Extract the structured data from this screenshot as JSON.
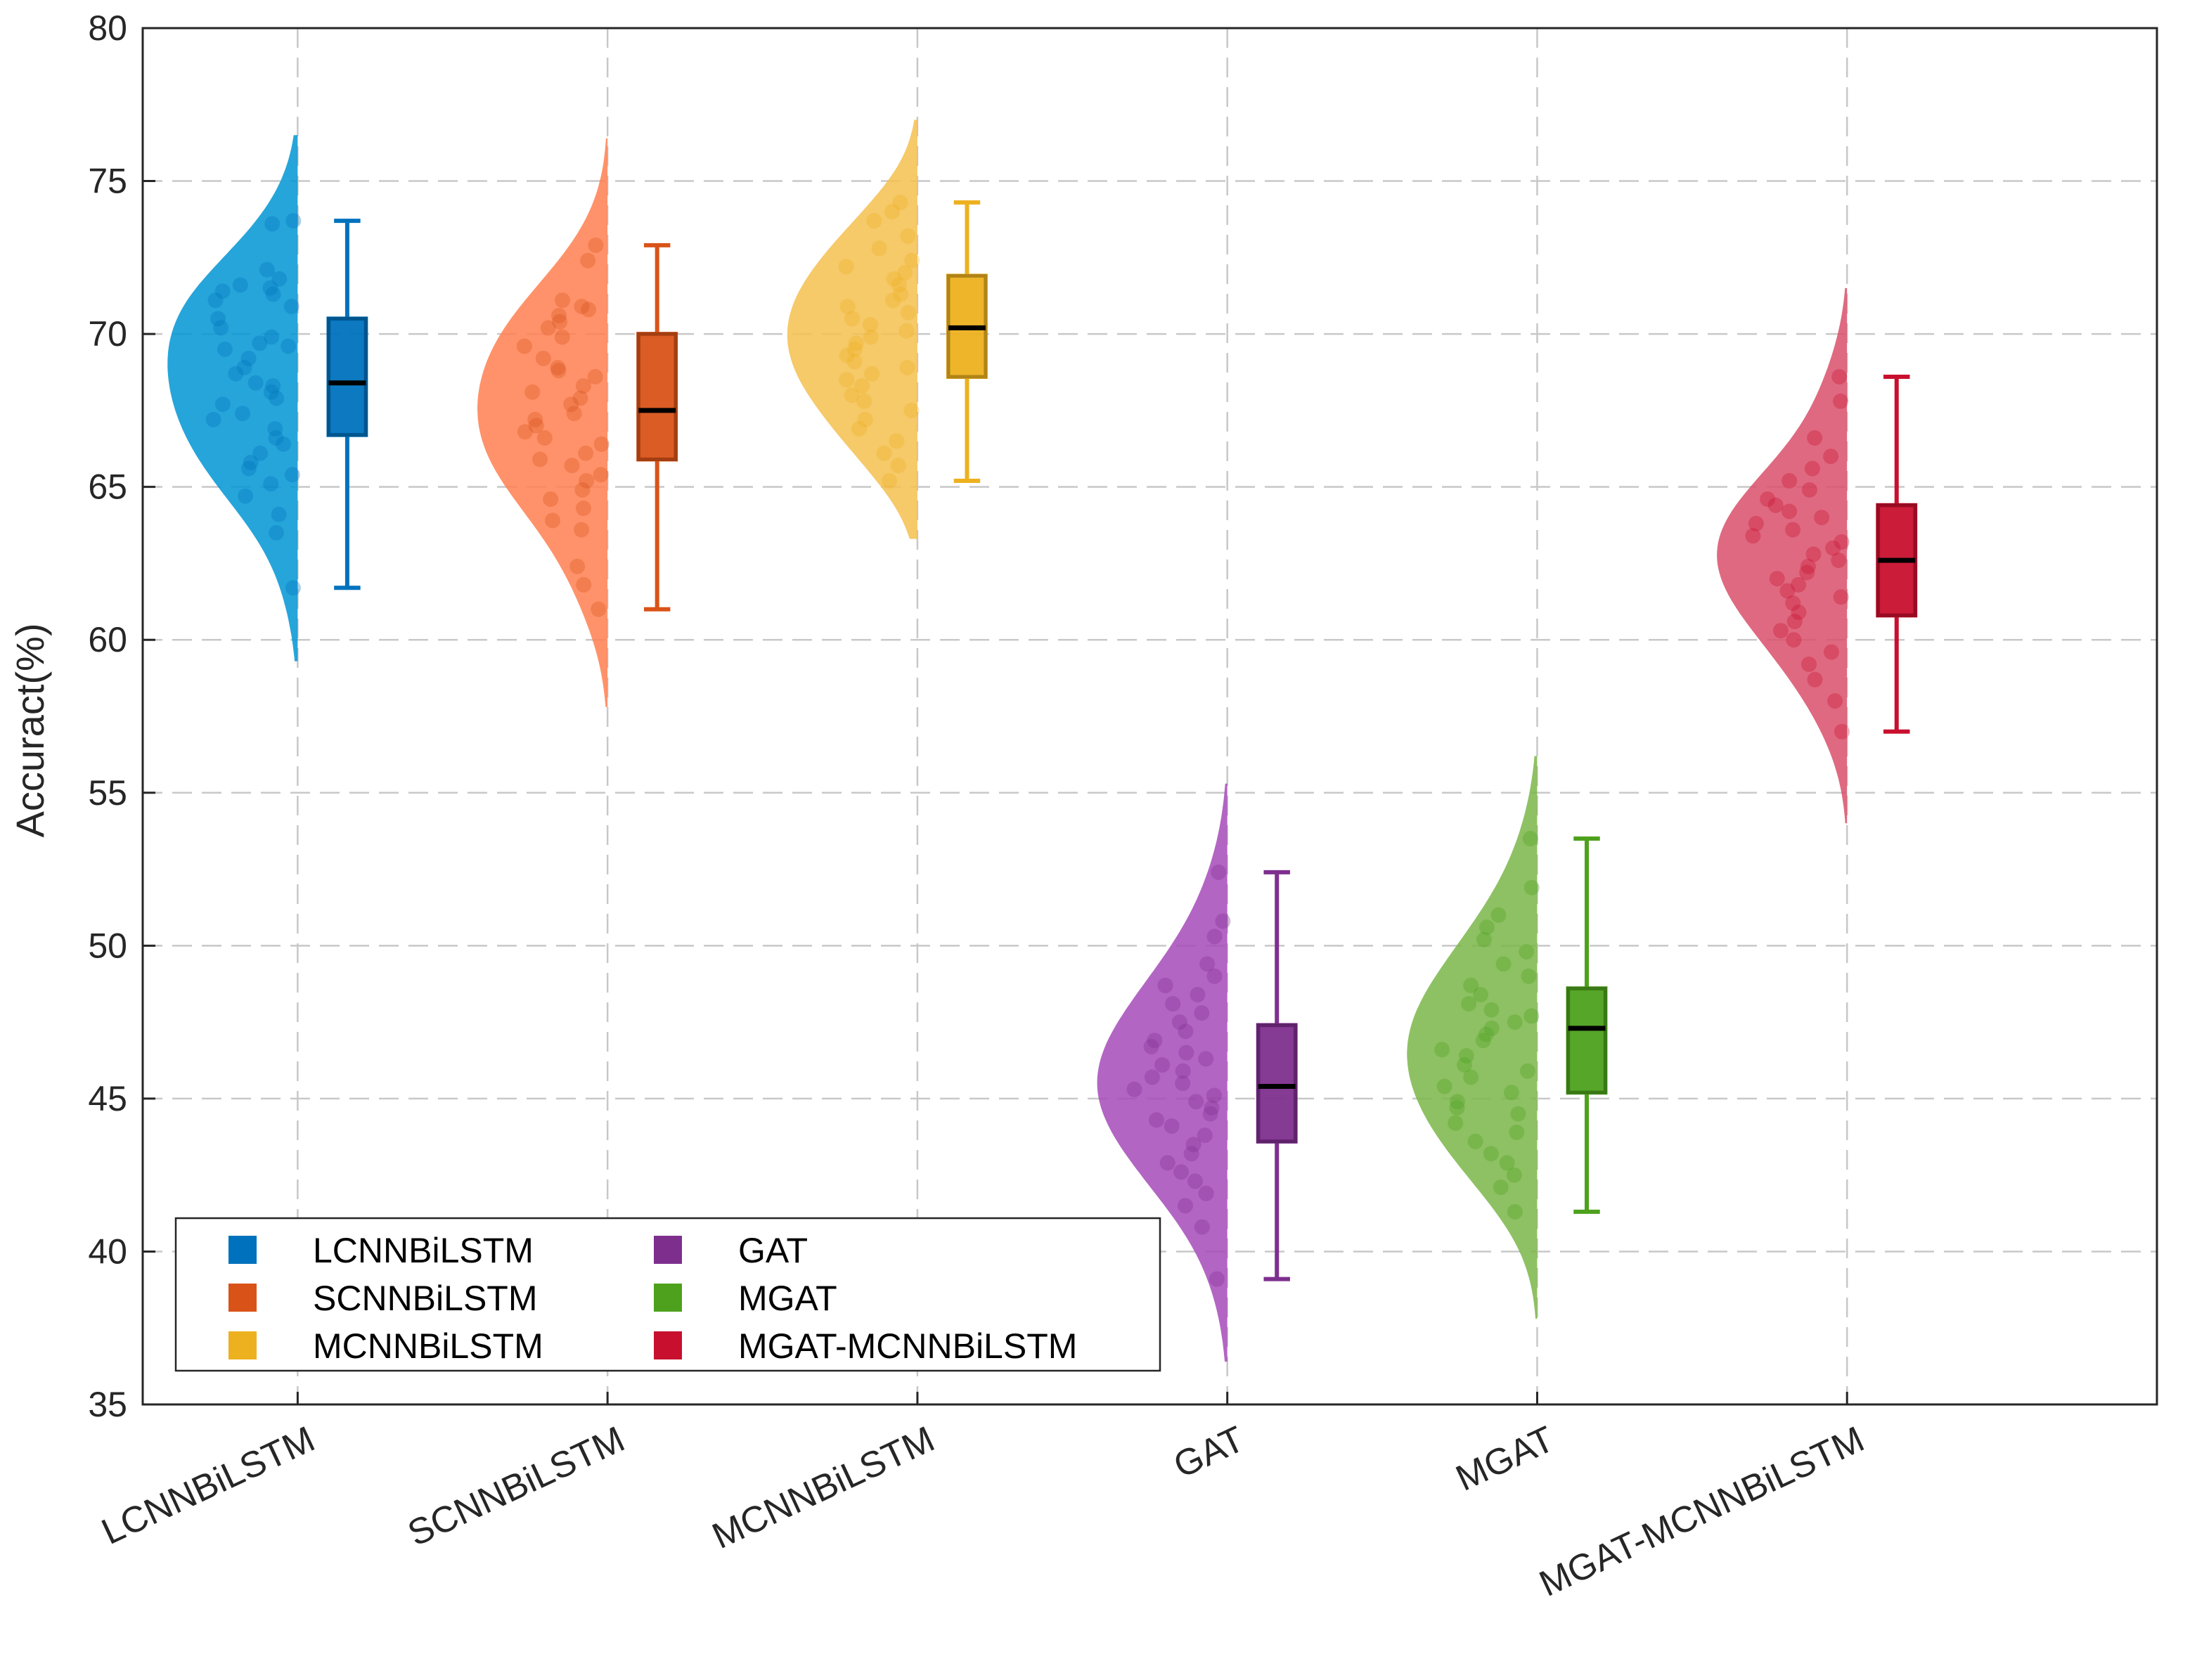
{
  "chart_data": {
    "type": "raincloud",
    "title": "",
    "xlabel": "",
    "ylabel": "Accuract(%)",
    "ylim": [
      35,
      80
    ],
    "yticks": [
      35,
      40,
      45,
      50,
      55,
      60,
      65,
      70,
      75,
      80
    ],
    "grid": true,
    "legend_position": "bottom-left",
    "categories": [
      "LCNNBiLSTM",
      "SCNNBiLSTM",
      "MCNNBiLSTM",
      "GAT",
      "MGAT",
      "MGAT-MCNNBiLSTM"
    ],
    "series": [
      {
        "name": "LCNNBiLSTM",
        "color": "#0072BD",
        "half_violin_color": "#0095d4",
        "box": {
          "min": 61.7,
          "q1": 66.7,
          "median": 68.4,
          "q3": 70.5,
          "max": 73.7
        },
        "density_range": [
          59.3,
          76.5
        ],
        "points": [
          73.7,
          73.6,
          72.1,
          71.8,
          71.6,
          71.5,
          71.4,
          71.3,
          71.1,
          70.9,
          70.5,
          70.2,
          69.9,
          69.7,
          69.6,
          69.5,
          69.2,
          68.9,
          68.7,
          68.4,
          68.3,
          68.1,
          67.9,
          67.7,
          67.4,
          67.2,
          66.9,
          66.6,
          66.4,
          66.1,
          65.8,
          65.6,
          65.4,
          65.1,
          64.7,
          64.1,
          63.5,
          61.7
        ]
      },
      {
        "name": "SCNNBiLSTM",
        "color": "#D95319",
        "half_violin_color": "#ff7f50",
        "box": {
          "min": 61.0,
          "q1": 65.9,
          "median": 67.5,
          "q3": 70.0,
          "max": 72.9
        },
        "density_range": [
          57.8,
          76.4
        ],
        "points": [
          72.9,
          72.4,
          71.1,
          70.9,
          70.8,
          70.6,
          70.4,
          70.2,
          69.9,
          69.6,
          69.2,
          68.9,
          68.8,
          68.6,
          68.3,
          68.1,
          67.9,
          67.7,
          67.4,
          67.2,
          67.0,
          66.8,
          66.6,
          66.4,
          66.1,
          65.9,
          65.7,
          65.4,
          65.2,
          64.9,
          64.6,
          64.3,
          63.9,
          63.6,
          62.4,
          61.8,
          61.0
        ]
      },
      {
        "name": "MCNNBiLSTM",
        "color": "#EDB120",
        "half_violin_color": "#f5c04f",
        "box": {
          "min": 65.2,
          "q1": 68.6,
          "median": 70.2,
          "q3": 71.9,
          "max": 74.3
        },
        "density_range": [
          63.3,
          77.0
        ],
        "points": [
          74.3,
          74.0,
          73.7,
          73.2,
          72.8,
          72.4,
          72.2,
          72.0,
          71.8,
          71.6,
          71.3,
          71.1,
          70.9,
          70.7,
          70.5,
          70.3,
          70.1,
          69.9,
          69.7,
          69.5,
          69.3,
          69.1,
          68.9,
          68.7,
          68.5,
          68.3,
          68.0,
          67.8,
          67.5,
          67.2,
          66.9,
          66.5,
          66.1,
          65.7,
          65.2
        ]
      },
      {
        "name": "GAT",
        "color": "#7E2F8E",
        "half_violin_color": "#a64ab8",
        "box": {
          "min": 39.1,
          "q1": 43.6,
          "median": 45.4,
          "q3": 47.4,
          "max": 52.4
        },
        "density_range": [
          36.4,
          55.3
        ],
        "points": [
          52.4,
          50.8,
          50.3,
          49.4,
          49.0,
          48.7,
          48.4,
          48.1,
          47.8,
          47.5,
          47.2,
          46.9,
          46.7,
          46.5,
          46.3,
          46.1,
          45.9,
          45.7,
          45.5,
          45.3,
          45.1,
          44.9,
          44.7,
          44.5,
          44.3,
          44.1,
          43.8,
          43.5,
          43.2,
          42.9,
          42.6,
          42.3,
          41.9,
          41.5,
          40.8,
          39.1
        ]
      },
      {
        "name": "MGAT",
        "color": "#4DA11D",
        "half_violin_color": "#7ab648",
        "box": {
          "min": 41.3,
          "q1": 45.2,
          "median": 47.3,
          "q3": 48.6,
          "max": 53.5
        },
        "density_range": [
          37.8,
          56.2
        ],
        "points": [
          53.5,
          51.9,
          51.0,
          50.6,
          50.2,
          49.8,
          49.4,
          49.0,
          48.7,
          48.4,
          48.1,
          47.9,
          47.7,
          47.5,
          47.3,
          47.1,
          46.9,
          46.6,
          46.4,
          46.1,
          45.9,
          45.7,
          45.4,
          45.2,
          44.9,
          44.7,
          44.5,
          44.2,
          43.9,
          43.6,
          43.2,
          42.9,
          42.5,
          42.1,
          41.3
        ]
      },
      {
        "name": "MGAT-MCNNBiLSTM",
        "color": "#C8102E",
        "half_violin_color": "#d94f6a",
        "box": {
          "min": 57.0,
          "q1": 60.8,
          "median": 62.6,
          "q3": 64.4,
          "max": 68.6
        },
        "density_range": [
          54.0,
          71.5
        ],
        "points": [
          68.6,
          67.8,
          66.6,
          66.0,
          65.6,
          65.2,
          64.9,
          64.6,
          64.4,
          64.2,
          64.0,
          63.8,
          63.6,
          63.4,
          63.2,
          63.0,
          62.8,
          62.6,
          62.4,
          62.2,
          62.0,
          61.8,
          61.6,
          61.4,
          61.2,
          60.9,
          60.6,
          60.3,
          60.0,
          59.6,
          59.2,
          58.7,
          58.0,
          57.0
        ]
      }
    ]
  }
}
